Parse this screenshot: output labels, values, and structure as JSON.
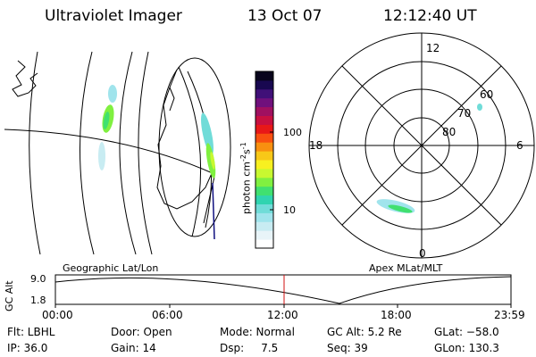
{
  "header": {
    "title": "Ultraviolet Imager",
    "date": "13 Oct 07",
    "time": "12:12:40 UT"
  },
  "colorbar": {
    "label": "photon cm",
    "label_sup1": "-2",
    "label_mid": "s",
    "label_sup2": "-1",
    "ticks": [
      "100",
      "10"
    ],
    "colors": [
      "#ffffff",
      "#e8f4f8",
      "#c8ecf2",
      "#a0e4ec",
      "#70dcd8",
      "#30d4b0",
      "#40e070",
      "#80f040",
      "#c8f830",
      "#f8f020",
      "#f8c818",
      "#f89010",
      "#f85010",
      "#e81818",
      "#c81040",
      "#a01060",
      "#70107c",
      "#401078",
      "#180850",
      "#08041c"
    ]
  },
  "polar": {
    "mlt_labels": {
      "top": "12",
      "left": "18",
      "right": "6",
      "bottom": "0"
    },
    "lat_labels": [
      "80",
      "70",
      "60"
    ]
  },
  "orbit": {
    "left_label": "Geographic Lat/Lon",
    "right_label": "Apex MLat/MLT",
    "y_axis": "GC Alt",
    "y_ticks": [
      "9.0",
      "1.8"
    ],
    "x_ticks": [
      "00:00",
      "06:00",
      "12:00",
      "18:00",
      "23:59"
    ]
  },
  "footer": {
    "rows": [
      [
        "Flt: LBHL",
        "Door: Open",
        "Mode: Normal",
        "GC Alt: 5.2 Re",
        "GLat: −58.0"
      ],
      [
        "IP: 36.0",
        "Gain: 14",
        "Dsp:     7.5",
        "Seq: 39",
        "GLon: 130.3"
      ]
    ]
  }
}
